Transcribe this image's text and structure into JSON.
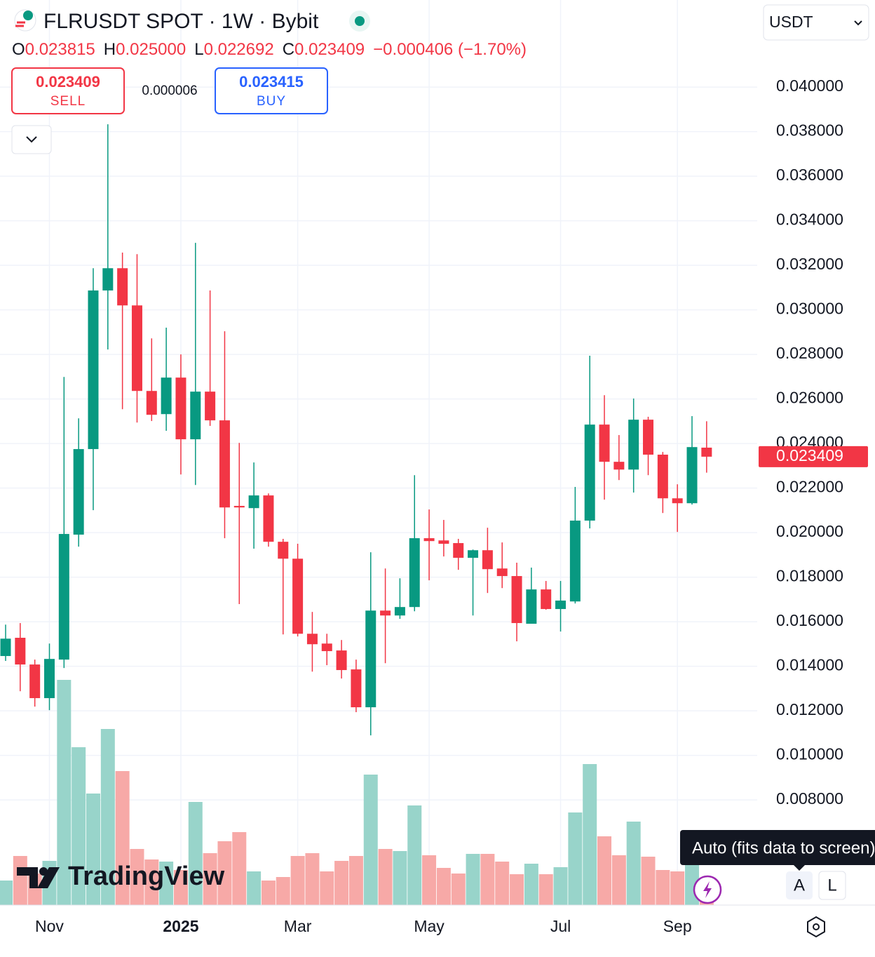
{
  "header": {
    "symbol": "FLRUSDT SPOT · 1W · Bybit",
    "currency": "USDT",
    "ohlc": [
      {
        "key": "O",
        "value": "0.023815"
      },
      {
        "key": "H",
        "value": "0.025000"
      },
      {
        "key": "L",
        "value": "0.022692"
      },
      {
        "key": "C",
        "value": "0.023409"
      }
    ],
    "change": "−0.000406 (−1.70%)"
  },
  "trade": {
    "sell_price": "0.023409",
    "sell": "SELL",
    "spread": "0.000006",
    "buy_price": "0.023415",
    "buy": "BUY"
  },
  "chart_data": {
    "type": "candlestick",
    "categories": [
      null,
      null,
      null,
      "Nov",
      null,
      null,
      null,
      null,
      null,
      null,
      null,
      null,
      "2025",
      null,
      null,
      null,
      null,
      null,
      null,
      null,
      "Mar",
      null,
      null,
      null,
      null,
      null,
      null,
      null,
      null,
      "May",
      null,
      null,
      null,
      null,
      null,
      null,
      null,
      null,
      "Jul",
      null,
      null,
      null,
      null,
      null,
      null,
      null,
      "Sep",
      null,
      null
    ],
    "open": [
      0.01446,
      0.01528,
      0.01408,
      0.01257,
      0.0143,
      0.01991,
      0.02375,
      0.03087,
      0.03187,
      0.0302,
      0.02636,
      0.02532,
      0.02696,
      0.02419,
      0.02633,
      0.02504,
      0.0212,
      0.0211,
      0.02167,
      0.01959,
      0.01883,
      0.01546,
      0.01502,
      0.01471,
      0.01386,
      0.01216,
      0.0165,
      0.01628,
      0.01666,
      0.01975,
      0.01965,
      0.01953,
      0.01887,
      0.01921,
      0.01839,
      0.01805,
      0.01591,
      0.01745,
      0.01657,
      0.01691,
      0.02054,
      0.02485,
      0.02318,
      0.02283,
      0.02507,
      0.0235,
      0.02154,
      0.02132,
      0.023815
    ],
    "high": [
      0.01587,
      0.01594,
      0.0143,
      0.01502,
      0.02699,
      0.02513,
      0.03187,
      0.03833,
      0.03257,
      0.0325,
      0.02872,
      0.0292,
      0.028,
      0.03301,
      0.03087,
      0.02904,
      0.02403,
      0.02315,
      0.02176,
      0.01972,
      0.0195,
      0.01644,
      0.01546,
      0.01518,
      0.0143,
      0.01912,
      0.01839,
      0.01795,
      0.02258,
      0.02104,
      0.02057,
      0.01972,
      0.01924,
      0.02022,
      0.01956,
      0.01865,
      0.01843,
      0.01783,
      0.01783,
      0.02205,
      0.02794,
      0.02617,
      0.02438,
      0.02602,
      0.0252,
      0.02362,
      0.02217,
      0.02523,
      0.025
    ],
    "low": [
      0.01424,
      0.01288,
      0.01219,
      0.01203,
      0.01392,
      0.01937,
      0.02101,
      0.02822,
      0.02554,
      0.02494,
      0.02501,
      0.02457,
      0.02261,
      0.02214,
      0.02479,
      0.01975,
      0.01679,
      0.01928,
      0.01937,
      0.01543,
      0.01534,
      0.01376,
      0.01405,
      0.01345,
      0.01194,
      0.0109,
      0.01414,
      0.01613,
      0.01647,
      0.01786,
      0.01893,
      0.01833,
      0.01628,
      0.01729,
      0.01751,
      0.01512,
      0.01591,
      0.01654,
      0.01556,
      0.01682,
      0.02019,
      0.02148,
      0.02236,
      0.0218,
      0.02258,
      0.02088,
      0.02003,
      0.02126,
      0.022692
    ],
    "close": [
      0.01524,
      0.01408,
      0.01257,
      0.01433,
      0.01994,
      0.02375,
      0.03087,
      0.03187,
      0.0302,
      0.02636,
      0.02529,
      0.02696,
      0.02419,
      0.02633,
      0.02504,
      0.02113,
      0.02113,
      0.02167,
      0.01959,
      0.01883,
      0.01546,
      0.01499,
      0.01468,
      0.01383,
      0.01216,
      0.0165,
      0.01628,
      0.01666,
      0.01975,
      0.01962,
      0.0195,
      0.01887,
      0.01921,
      0.01836,
      0.01805,
      0.01594,
      0.01745,
      0.01657,
      0.01695,
      0.02054,
      0.02485,
      0.02318,
      0.02283,
      0.02507,
      0.0235,
      0.02154,
      0.02132,
      0.02384,
      0.023409
    ],
    "volume": [
      35,
      70,
      45,
      63,
      321,
      225,
      159,
      251,
      191,
      80,
      65,
      62,
      50,
      147,
      74,
      91,
      104,
      48,
      35,
      40,
      70,
      74,
      48,
      63,
      70,
      186,
      80,
      77,
      142,
      71,
      53,
      45,
      73,
      73,
      62,
      44,
      59,
      44,
      54,
      132,
      201,
      98,
      71,
      119,
      69,
      50,
      48,
      60,
      5
    ],
    "up_color": "#089981",
    "down_color": "#f23645",
    "volume_up_color": "#98d4ca",
    "volume_down_color": "#f7a9a7",
    "ylim": [
      0.00328,
      0.04391
    ],
    "yticks": [
      {
        "value": 0.008,
        "label": "0.008000"
      },
      {
        "value": 0.01,
        "label": "0.010000"
      },
      {
        "value": 0.012,
        "label": "0.012000"
      },
      {
        "value": 0.014,
        "label": "0.014000"
      },
      {
        "value": 0.016,
        "label": "0.016000"
      },
      {
        "value": 0.018,
        "label": "0.018000"
      },
      {
        "value": 0.02,
        "label": "0.020000"
      },
      {
        "value": 0.022,
        "label": "0.022000"
      },
      {
        "value": 0.024,
        "label": "0.024000"
      },
      {
        "value": 0.026,
        "label": "0.026000"
      },
      {
        "value": 0.028,
        "label": "0.028000"
      },
      {
        "value": 0.03,
        "label": "0.030000"
      },
      {
        "value": 0.032,
        "label": "0.032000"
      },
      {
        "value": 0.034,
        "label": "0.034000"
      },
      {
        "value": 0.036,
        "label": "0.036000"
      },
      {
        "value": 0.038,
        "label": "0.038000"
      },
      {
        "value": 0.04,
        "label": "0.040000"
      }
    ],
    "grid": true,
    "last_price": {
      "value": 0.023409,
      "label": "0.023409"
    }
  },
  "watermark": "TradingView",
  "tooltip": "Auto (fits data to screen)",
  "scale_buttons": [
    "A",
    "L"
  ]
}
